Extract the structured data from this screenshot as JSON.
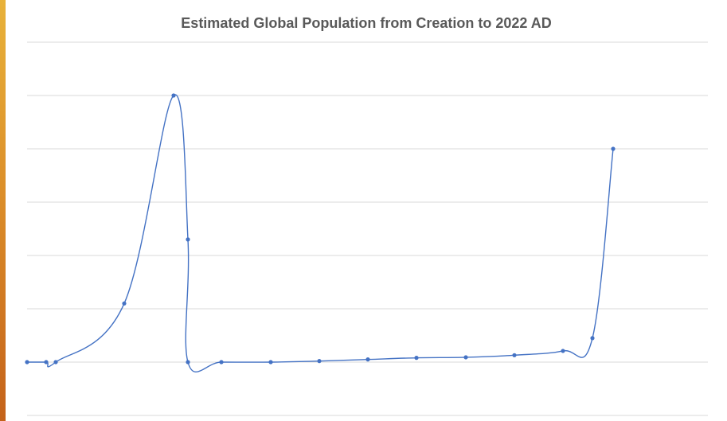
{
  "chart_data": {
    "type": "line",
    "title": "Estimated Global Population from Creation to 2022 AD",
    "xlabel": "",
    "ylabel": "",
    "smooth": true,
    "grid": true,
    "legend": "none",
    "ylim": [
      -1,
      7
    ],
    "series": [
      {
        "values": [
          0,
          0,
          0,
          1.1,
          5,
          2.3,
          0,
          0,
          0,
          0.02,
          0.05,
          0.08,
          0.09,
          0.13,
          0.21,
          0.45,
          4
        ]
      }
    ],
    "colors": {
      "line": "#4472c4",
      "grid": "#d9d9d9"
    }
  }
}
